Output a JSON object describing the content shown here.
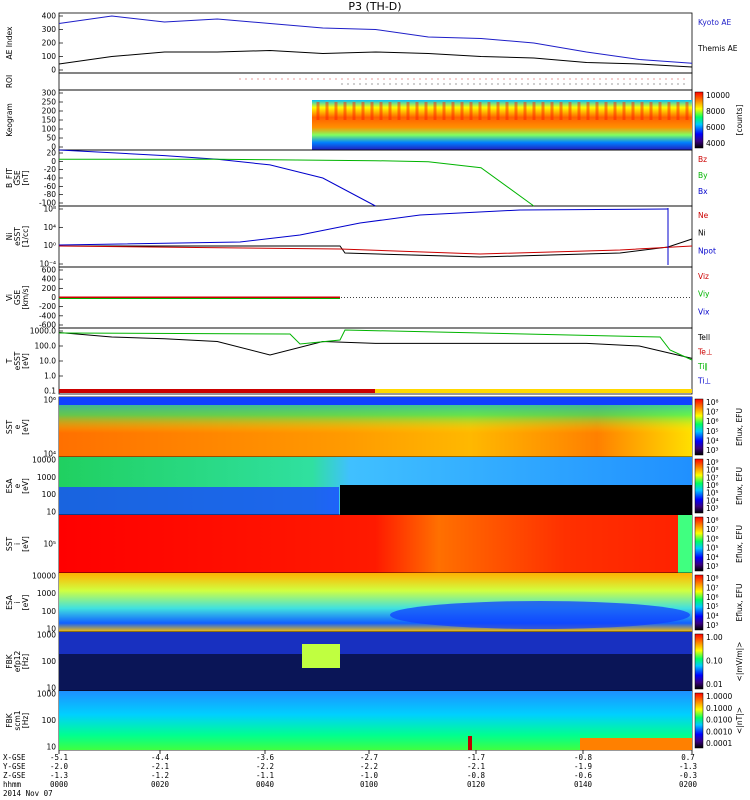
{
  "title": "P3 (TH-D)",
  "x_range": [
    "0000",
    "0200"
  ],
  "panels": [
    {
      "id": "ae",
      "ylabel": [
        "AE Index"
      ],
      "ticks": [
        "400",
        "300",
        "200",
        "100",
        "0"
      ],
      "right": [
        {
          "text": "Kyoto AE",
          "color": "#1e1ec8"
        },
        {
          "text": "Themis AE",
          "color": "#000000"
        }
      ]
    },
    {
      "id": "roi",
      "ylabel": [
        "ROI"
      ],
      "ticks": [],
      "right": []
    },
    {
      "id": "keogram",
      "ylabel": [
        "Keogram"
      ],
      "ticks": [
        "300",
        "250",
        "200",
        "150",
        "100",
        "50",
        "0"
      ],
      "colorbar": {
        "ticks": [
          "10000",
          "8000",
          "6000",
          "4000"
        ],
        "unit": "[counts]"
      }
    },
    {
      "id": "bfield",
      "ylabel": [
        "B_FIT",
        "GSE",
        "[nT]"
      ],
      "ticks": [
        "20",
        "0",
        "-20",
        "-40",
        "-60",
        "-80",
        "-100"
      ],
      "right": [
        {
          "text": "Bz",
          "color": "#cc0000"
        },
        {
          "text": "By",
          "color": "#00b400"
        },
        {
          "text": "Bx",
          "color": "#0000cc"
        }
      ]
    },
    {
      "id": "density",
      "ylabel": [
        "Ni",
        "eSST",
        "[1/cc]"
      ],
      "ticks": [
        "10⁸",
        "10⁴",
        "10⁰",
        "10⁻⁴"
      ],
      "right": [
        {
          "text": "Ne",
          "color": "#cc0000"
        },
        {
          "text": "Ni",
          "color": "#000000"
        },
        {
          "text": "Npot",
          "color": "#0000cc"
        }
      ]
    },
    {
      "id": "velocity",
      "ylabel": [
        "Vi",
        "GSE",
        "[km/s]"
      ],
      "ticks": [
        "600",
        "400",
        "200",
        "0",
        "-200",
        "-400",
        "-600"
      ],
      "right": [
        {
          "text": "Viz",
          "color": "#cc0000"
        },
        {
          "text": "Viy",
          "color": "#00b400"
        },
        {
          "text": "Vix",
          "color": "#0000cc"
        }
      ]
    },
    {
      "id": "temperature",
      "ylabel": [
        "T",
        "eSST",
        "[eV]"
      ],
      "ticks": [
        "1000.0",
        "100.0",
        "10.0",
        "1.0",
        "0.1"
      ],
      "right": [
        {
          "text": "Tell",
          "color": "#000000"
        },
        {
          "text": "Te⊥",
          "color": "#cc0000"
        },
        {
          "text": "Ti∥",
          "color": "#00b400"
        },
        {
          "text": "Ti⊥",
          "color": "#0000cc"
        }
      ]
    },
    {
      "id": "sst-e",
      "ylabel": [
        "SST",
        "e",
        "[eV]"
      ],
      "ticks": [
        "10⁶",
        "10⁴"
      ],
      "colorbar": {
        "ticks": [
          "10⁸",
          "10⁷",
          "10⁶",
          "10⁵",
          "10⁴",
          "10³"
        ],
        "unit": "Eflux, EFU"
      }
    },
    {
      "id": "esa-e",
      "ylabel": [
        "ESA",
        "e",
        "[eV]"
      ],
      "ticks": [
        "10000",
        "1000",
        "100",
        "10"
      ],
      "colorbar": {
        "ticks": [
          "10⁹",
          "10⁸",
          "10⁷",
          "10⁶",
          "10⁵",
          "10⁴",
          "10³"
        ],
        "unit": "Eflux, EFU"
      }
    },
    {
      "id": "sst-i",
      "ylabel": [
        "SST",
        "i",
        "[eV]"
      ],
      "ticks": [
        "10⁵"
      ],
      "colorbar": {
        "ticks": [
          "10⁸",
          "10⁷",
          "10⁶",
          "10⁵",
          "10⁴",
          "10³"
        ],
        "unit": "Eflux, EFU"
      }
    },
    {
      "id": "esa-i",
      "ylabel": [
        "ESA",
        "i",
        "[eV]"
      ],
      "ticks": [
        "10000",
        "1000",
        "100",
        "10"
      ],
      "colorbar": {
        "ticks": [
          "10⁸",
          "10⁷",
          "10⁶",
          "10⁵",
          "10⁴",
          "10³"
        ],
        "unit": "Eflux, EFU"
      }
    },
    {
      "id": "fbk-e",
      "ylabel": [
        "FBK",
        "efp12",
        "[Hz]"
      ],
      "ticks": [
        "1000",
        "100",
        "10"
      ],
      "colorbar": {
        "ticks": [
          "1.00",
          "0.10",
          "0.01"
        ],
        "unit": "<|mV/m|>"
      }
    },
    {
      "id": "fbk-b",
      "ylabel": [
        "FBK",
        "scm1",
        "[Hz]"
      ],
      "ticks": [
        "1000",
        "100",
        "10"
      ],
      "colorbar": {
        "ticks": [
          "1.0000",
          "0.1000",
          "0.0100",
          "0.0010",
          "0.0001"
        ],
        "unit": "<|nT|>"
      }
    }
  ],
  "bottom_axis": {
    "row_labels": [
      "X-GSE",
      "Y-GSE",
      "Z-GSE",
      "hhmm",
      "2014 Nov 07"
    ],
    "columns": [
      {
        "values": [
          "-5.1",
          "-2.0",
          "-1.3",
          "0000"
        ]
      },
      {
        "values": [
          "-4.4",
          "-2.1",
          "-1.2",
          "0020"
        ]
      },
      {
        "values": [
          "-3.6",
          "-2.2",
          "-1.1",
          "0040"
        ]
      },
      {
        "values": [
          "-2.7",
          "-2.2",
          "-1.0",
          "0100"
        ]
      },
      {
        "values": [
          "-1.7",
          "-2.1",
          "-0.8",
          "0120"
        ]
      },
      {
        "values": [
          "-0.8",
          "-1.9",
          "-0.6",
          "0140"
        ]
      },
      {
        "values": [
          "0.7",
          "-1.3",
          "-0.3",
          "0200"
        ]
      }
    ]
  },
  "chart_data": {
    "type": "line",
    "title": "P3 (TH-D)",
    "x": [
      "0000",
      "0010",
      "0020",
      "0030",
      "0040",
      "0050",
      "0100",
      "0110",
      "0120",
      "0130",
      "0140",
      "0150",
      "0200"
    ],
    "series": [
      {
        "name": "Kyoto AE",
        "panel": "ae",
        "values": [
          330,
          380,
          340,
          360,
          330,
          300,
          290,
          240,
          230,
          200,
          140,
          90,
          65
        ]
      },
      {
        "name": "Themis AE",
        "panel": "ae",
        "values": [
          60,
          110,
          140,
          140,
          150,
          130,
          140,
          130,
          110,
          100,
          70,
          60,
          40
        ]
      },
      {
        "name": "Bx",
        "panel": "bfield",
        "values": [
          20,
          14,
          8,
          0,
          -12,
          -40,
          -100,
          null,
          null,
          null,
          null,
          null,
          null
        ]
      },
      {
        "name": "By",
        "panel": "bfield",
        "values": [
          0,
          0,
          0,
          0,
          -1,
          -2,
          -3,
          -5,
          -18,
          -100,
          null,
          null,
          null
        ]
      },
      {
        "name": "Tell",
        "panel": "temperature",
        "values": [
          800,
          400,
          300,
          200,
          25,
          200,
          150,
          150,
          150,
          150,
          150,
          100,
          15
        ]
      }
    ],
    "ylim": {
      "ae": [
        0,
        400
      ],
      "bfield": [
        -100,
        20
      ],
      "velocity": [
        -600,
        600
      ],
      "keogram": [
        0,
        300
      ]
    }
  }
}
